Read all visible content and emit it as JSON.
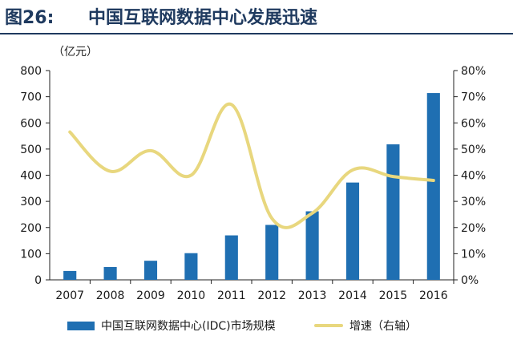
{
  "header": {
    "figure_label": "图26:",
    "title": "中国互联网数据中心发展迅速"
  },
  "colors": {
    "bar": "#1f6fb2",
    "line": "#e8d77e",
    "title": "#1f3a5f",
    "axis": "#222222"
  },
  "chart_data": {
    "type": "bar",
    "categories": [
      "2007",
      "2008",
      "2009",
      "2010",
      "2011",
      "2012",
      "2013",
      "2014",
      "2015",
      "2016"
    ],
    "series": [
      {
        "name": "中国互联网数据中心(IDC)市场规模",
        "type": "bar",
        "axis": "left",
        "values": [
          34,
          49,
          73,
          102,
          170,
          210,
          262,
          372,
          518,
          714
        ]
      },
      {
        "name": "增速（右轴）",
        "type": "line",
        "axis": "right",
        "values": [
          56.5,
          41.5,
          49.4,
          40.0,
          67.0,
          23.5,
          25.5,
          42.0,
          39.5,
          38.0
        ]
      }
    ],
    "yleft": {
      "unit_label": "（亿元）",
      "lim": [
        0,
        800
      ],
      "ticks": [
        "0",
        "100",
        "200",
        "300",
        "400",
        "500",
        "600",
        "700",
        "800"
      ]
    },
    "yright": {
      "lim": [
        0,
        80
      ],
      "ticks": [
        "0%",
        "10%",
        "20%",
        "30%",
        "40%",
        "50%",
        "60%",
        "70%",
        "80%"
      ]
    },
    "grid": false,
    "legend_position": "bottom"
  }
}
